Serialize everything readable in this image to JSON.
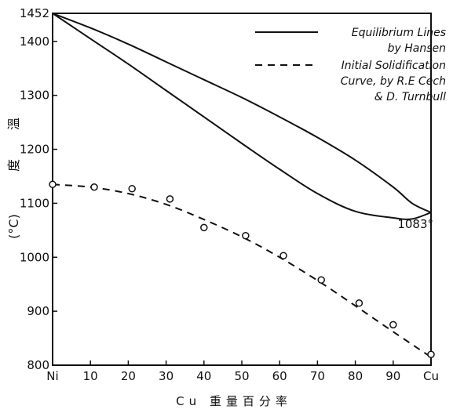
{
  "chart_data": {
    "type": "line",
    "xlabel": "Cu 重量百分率",
    "ylabel": "溫度 (°C)",
    "xlim": [
      0,
      100
    ],
    "ylim": [
      800,
      1452
    ],
    "x_ticks": [
      "Ni",
      "10",
      "20",
      "30",
      "40",
      "50",
      "60",
      "70",
      "80",
      "90",
      "Cu"
    ],
    "y_ticks": [
      "800",
      "900",
      "1000",
      "1100",
      "1200",
      "1300",
      "1400",
      "1452"
    ],
    "ylabel_chars": [
      "溫",
      "度",
      "(°C)"
    ],
    "series": [
      {
        "name": "Equilibrium Lines by Hansen",
        "style": "solid",
        "curves": [
          {
            "part": "liquidus",
            "x": [
              0,
              10,
              20,
              30,
              40,
              50,
              60,
              70,
              80,
              90,
              95,
              100
            ],
            "y": [
              1452,
              1425,
              1395,
              1362,
              1329,
              1296,
              1260,
              1222,
              1180,
              1130,
              1100,
              1083
            ]
          },
          {
            "part": "solidus",
            "x": [
              0,
              10,
              20,
              30,
              40,
              50,
              60,
              70,
              80,
              90,
              95,
              100
            ],
            "y": [
              1452,
              1405,
              1358,
              1309,
              1260,
              1211,
              1163,
              1118,
              1085,
              1073,
              1071,
              1083
            ]
          }
        ]
      },
      {
        "name": "Initial Solidification Curve, by R.E Cech & D. Turnbull",
        "style": "dashed",
        "x": [
          0,
          10,
          20,
          30,
          40,
          50,
          60,
          70,
          80,
          90,
          100
        ],
        "y": [
          1135,
          1130,
          1118,
          1098,
          1070,
          1038,
          1000,
          957,
          910,
          862,
          815
        ],
        "points": {
          "x": [
            0,
            11,
            21,
            31,
            40,
            51,
            61,
            71,
            81,
            90,
            100
          ],
          "y": [
            1135,
            1130,
            1127,
            1108,
            1055,
            1040,
            1003,
            958,
            915,
            875,
            820
          ]
        }
      }
    ],
    "legend": {
      "placement": "top-right",
      "entries": [
        {
          "style": "solid",
          "lines": [
            "Equilibrium Lines",
            "by Hansen"
          ]
        },
        {
          "style": "dashed",
          "lines": [
            "Initial Solidification",
            "Curve, by R.E Cech",
            "& D. Turnbull"
          ]
        }
      ]
    },
    "annotations": [
      {
        "text": "1083°",
        "x": 100,
        "y": 1083
      }
    ],
    "grid": false
  }
}
